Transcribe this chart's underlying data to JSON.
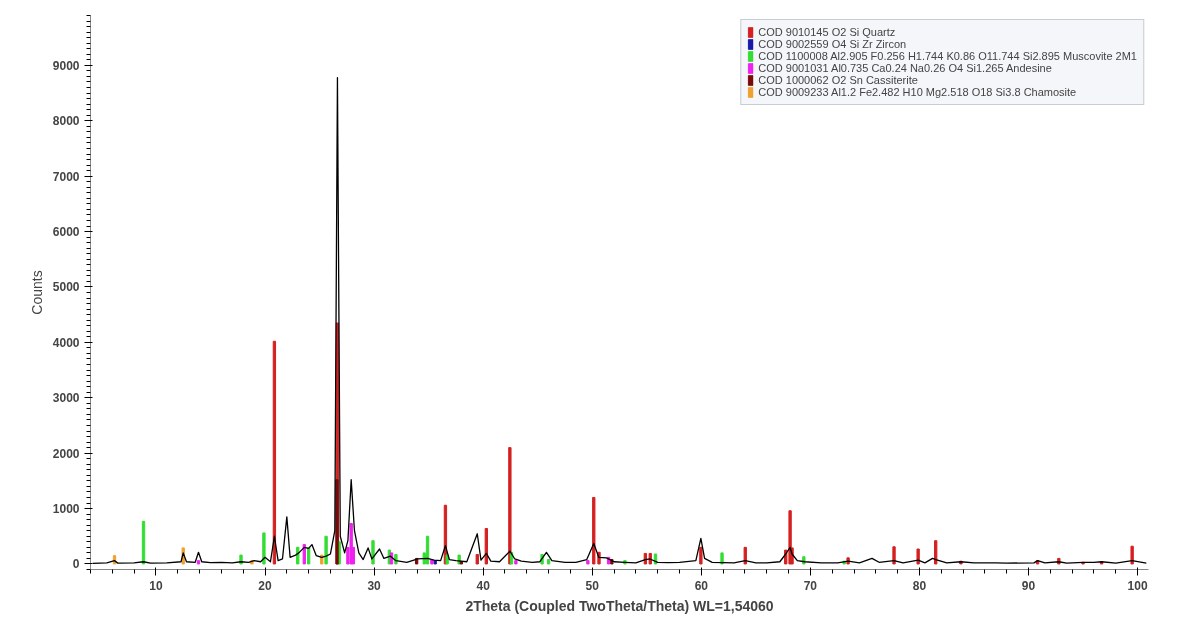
{
  "chart_data": {
    "type": "line",
    "xlabel": "2Theta (Coupled TwoTheta/Theta) WL=1,54060",
    "ylabel": "Counts",
    "xlim": [
      4,
      101
    ],
    "ylim": [
      -100,
      9900
    ],
    "xticks": [
      10,
      20,
      30,
      40,
      50,
      60,
      70,
      80,
      90,
      100
    ],
    "yticks": [
      0,
      1000,
      2000,
      3000,
      4000,
      5000,
      6000,
      7000,
      8000,
      9000
    ],
    "grid": false,
    "legend": "top right",
    "series": [
      {
        "name": "COD 9010145 O2 Si Quartz",
        "type": "bar",
        "color": "#d42020",
        "x": [
          20.86,
          26.64,
          36.54,
          39.46,
          40.29,
          42.45,
          50.14,
          50.62,
          54.87,
          55.32,
          59.96,
          64.03,
          67.74,
          68.14,
          68.32,
          73.46,
          77.67,
          79.88,
          81.49,
          83.8,
          90.83,
          92.78,
          95.0,
          96.7,
          99.5
        ],
        "values": [
          4020,
          4350,
          1060,
          170,
          640,
          2100,
          1200,
          210,
          190,
          190,
          300,
          300,
          250,
          960,
          290,
          110,
          310,
          270,
          420,
          50,
          60,
          100,
          30,
          40,
          320
        ]
      },
      {
        "name": "COD 9002559 O4 Si Zr Zircon",
        "type": "bar",
        "color": "#1a1aa8",
        "x": [
          35.6
        ],
        "values": [
          60
        ]
      },
      {
        "name": "COD 1100008 Al2.905 F0.256 H1.744 K0.86 O11.744 Si2.895 Muscovite 2M1",
        "type": "bar",
        "color": "#33dd33",
        "x": [
          8.86,
          17.8,
          19.9,
          23.0,
          24.0,
          25.6,
          26.8,
          29.9,
          31.4,
          32.0,
          34.6,
          34.9,
          36.7,
          37.8,
          42.6,
          45.4,
          46.0,
          53.0,
          55.8,
          61.9,
          69.4,
          73.1
        ],
        "values": [
          770,
          160,
          560,
          300,
          290,
          500,
          400,
          420,
          250,
          170,
          200,
          500,
          160,
          160,
          210,
          170,
          80,
          60,
          180,
          200,
          130,
          50
        ]
      },
      {
        "name": "COD 9001031 Al0.735 Ca0.24 Na0.26 O4 Si1.265 Andesine",
        "type": "bar",
        "color": "#ee22ee",
        "x": [
          13.9,
          23.6,
          27.6,
          27.9,
          28.1,
          31.6,
          35.3,
          43.0,
          49.6,
          51.5
        ],
        "values": [
          60,
          350,
          300,
          730,
          300,
          200,
          80,
          60,
          60,
          120
        ]
      },
      {
        "name": "COD 1000062 O2 Sn Cassiterite",
        "type": "bar",
        "color": "#7a0a0a",
        "x": [
          26.6,
          33.9,
          38.0,
          51.8
        ],
        "values": [
          1520,
          100,
          40,
          80
        ]
      },
      {
        "name": "COD 9009233 Al1.2 Fe2.482 H10 Mg2.518 O18 Si3.8 Chamosite",
        "type": "bar",
        "color": "#f0a030",
        "x": [
          6.2,
          12.5,
          18.8,
          25.2
        ],
        "values": [
          150,
          290,
          60,
          160
        ]
      },
      {
        "color": "#000000",
        "x": [
          4.2,
          5.5,
          6.2,
          6.5,
          8,
          8.85,
          9.5,
          11,
          12.3,
          12.5,
          12.8,
          13.6,
          13.9,
          14.2,
          15,
          16,
          17,
          17.8,
          18.5,
          19.0,
          19.6,
          20.0,
          20.5,
          20.86,
          21.2,
          21.6,
          22.0,
          22.3,
          22.8,
          23.1,
          23.6,
          24.0,
          24.3,
          24.7,
          25.2,
          25.6,
          26.0,
          26.4,
          26.64,
          26.9,
          27.3,
          27.6,
          27.9,
          28.2,
          28.6,
          29.0,
          29.45,
          29.8,
          30.5,
          30.9,
          31.5,
          32,
          33,
          34,
          34.9,
          35.5,
          36.1,
          36.54,
          36.9,
          37.5,
          38.5,
          39.46,
          39.8,
          40.29,
          40.7,
          41.5,
          42.45,
          42.9,
          43.5,
          44.5,
          45.2,
          45.8,
          46.3,
          47.5,
          48.5,
          49.5,
          50.14,
          50.6,
          51.3,
          52,
          53,
          54,
          54.87,
          55.3,
          56,
          57,
          58,
          59.5,
          59.96,
          60.3,
          61,
          62,
          63,
          64.03,
          65,
          66,
          67.2,
          67.74,
          68.14,
          68.32,
          68.8,
          69.5,
          71,
          72.5,
          73.46,
          74.5,
          75.65,
          76.3,
          77.67,
          78.5,
          79.88,
          80.5,
          81.2,
          81.5,
          82.5,
          83.8,
          85,
          87,
          88,
          90.5,
          90.83,
          91.5,
          92.78,
          93.5,
          95,
          96,
          96.7,
          98,
          99.5,
          100.8
        ],
        "values": [
          10,
          20,
          60,
          15,
          20,
          40,
          15,
          20,
          40,
          200,
          40,
          30,
          210,
          40,
          25,
          30,
          20,
          40,
          30,
          60,
          40,
          120,
          40,
          500,
          60,
          90,
          850,
          120,
          160,
          200,
          300,
          280,
          350,
          150,
          120,
          140,
          180,
          600,
          8780,
          500,
          200,
          420,
          1520,
          600,
          200,
          80,
          290,
          90,
          270,
          100,
          140,
          60,
          30,
          90,
          100,
          70,
          60,
          330,
          80,
          60,
          40,
          545,
          70,
          190,
          50,
          40,
          230,
          90,
          50,
          30,
          40,
          210,
          60,
          30,
          30,
          80,
          370,
          120,
          110,
          40,
          30,
          20,
          80,
          90,
          30,
          25,
          30,
          60,
          460,
          100,
          30,
          25,
          20,
          60,
          20,
          20,
          40,
          180,
          300,
          180,
          60,
          40,
          20,
          20,
          50,
          20,
          100,
          30,
          60,
          20,
          70,
          20,
          100,
          80,
          20,
          40,
          20,
          20,
          15,
          20,
          60,
          20,
          40,
          15,
          30,
          30,
          40,
          15,
          60,
          15
        ]
      }
    ]
  }
}
